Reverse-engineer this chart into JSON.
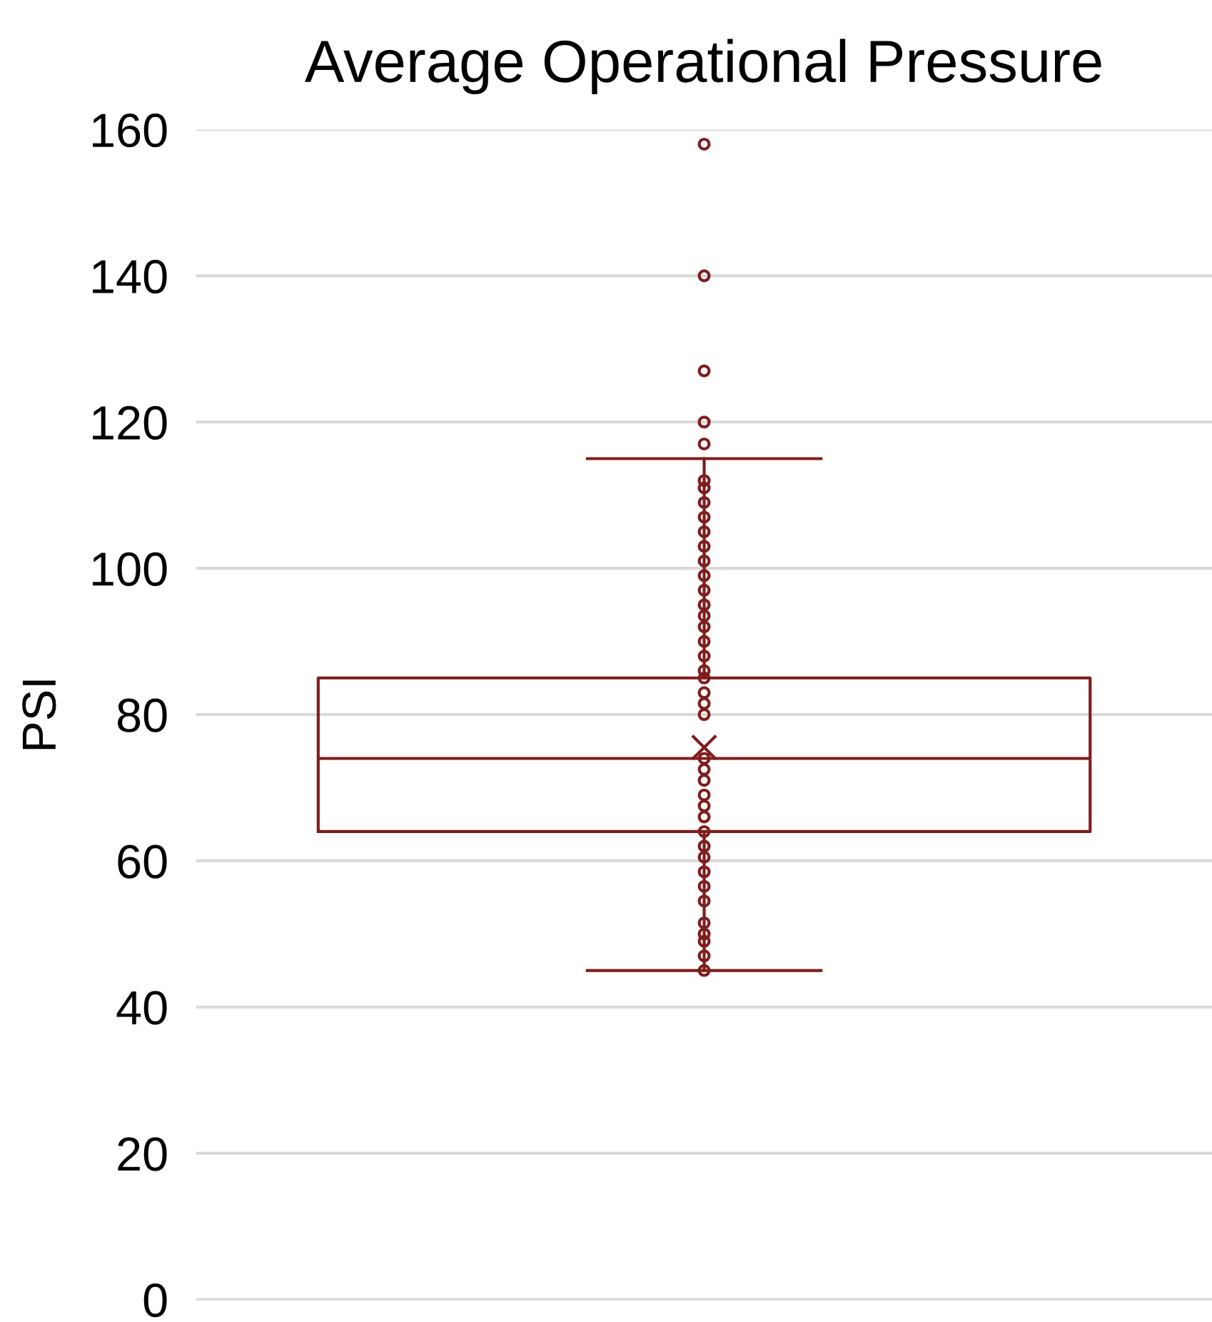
{
  "chart_data": {
    "type": "box",
    "title": "Average Operational Pressure",
    "ylabel": "PSI",
    "categories": [
      null
    ],
    "boxes": [
      {
        "low": 45,
        "q1": 64,
        "median": 74,
        "q3": 85,
        "high": 115,
        "mean": 75.5,
        "outliers": [
          117,
          120,
          127,
          140,
          158
        ]
      }
    ],
    "series": [
      {
        "type": "scatter",
        "color": "#7f1d1d",
        "x": [
          null,
          null,
          null,
          null,
          null,
          null,
          null,
          null,
          null,
          null,
          null,
          null,
          null,
          null,
          null,
          null,
          null,
          null,
          null,
          null,
          null,
          null,
          null,
          null,
          null,
          null,
          null,
          null,
          null,
          null,
          null,
          null,
          null,
          null,
          null,
          null
        ],
        "values": [
          112,
          111,
          109,
          107,
          105,
          103,
          101,
          99,
          97,
          95,
          93.5,
          92,
          90,
          88,
          86,
          85,
          83,
          81.5,
          80,
          74,
          72.5,
          71,
          69,
          67.5,
          66,
          64,
          62,
          60.5,
          58.5,
          56.5,
          54.5,
          51.5,
          50,
          49,
          47,
          45
        ]
      }
    ],
    "color": "#7f1d1d",
    "marker": "circle",
    "ylim": [
      0,
      160
    ],
    "yticks": [
      0,
      20,
      40,
      60,
      80,
      100,
      120,
      140,
      160
    ],
    "grid": "y",
    "legend": false
  }
}
